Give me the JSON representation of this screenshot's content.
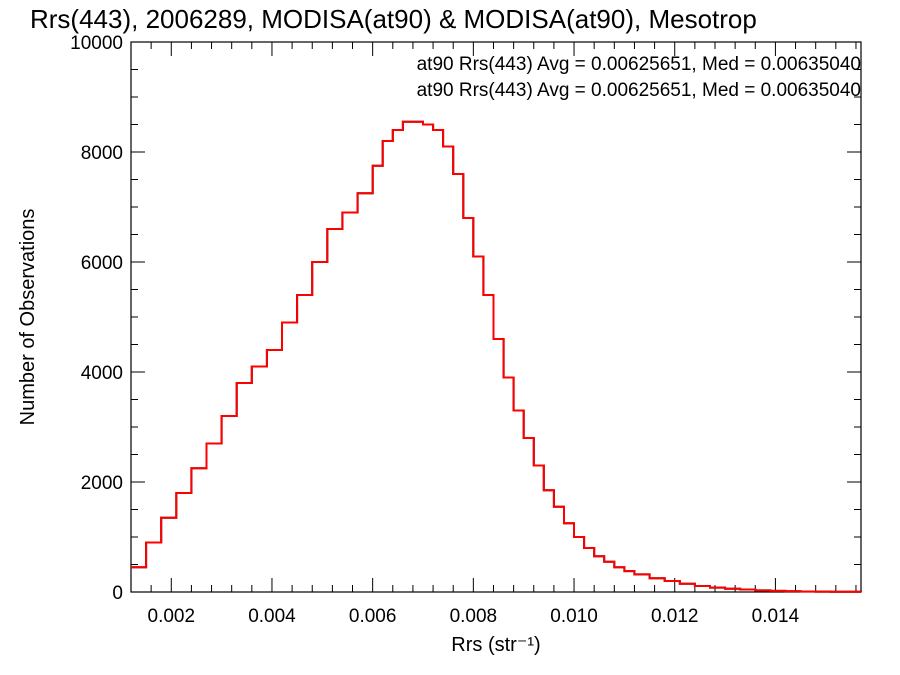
{
  "chart_data": {
    "type": "line",
    "title": "Rrs(443), 2006289, MODISA(at90) & MODISA(at90), Mesotrop",
    "xlabel": "Rrs (str⁻¹)",
    "ylabel": "Number of Observations",
    "xlim": [
      0.0012,
      0.0157
    ],
    "ylim": [
      0,
      10000
    ],
    "xticks": [
      {
        "value": 0.002,
        "label": "0.002"
      },
      {
        "value": 0.004,
        "label": "0.004"
      },
      {
        "value": 0.006,
        "label": "0.006"
      },
      {
        "value": 0.008,
        "label": "0.008"
      },
      {
        "value": 0.01,
        "label": "0.010"
      },
      {
        "value": 0.012,
        "label": "0.012"
      },
      {
        "value": 0.014,
        "label": "0.014"
      }
    ],
    "yticks": [
      {
        "value": 0,
        "label": "0"
      },
      {
        "value": 2000,
        "label": "2000"
      },
      {
        "value": 4000,
        "label": "4000"
      },
      {
        "value": 6000,
        "label": "6000"
      },
      {
        "value": 8000,
        "label": "8000"
      },
      {
        "value": 10000,
        "label": "10000"
      }
    ],
    "annotations": [
      {
        "text": "at90 Rrs(443) Avg = 0.00625651, Med = 0.00635040",
        "color": "#000000"
      },
      {
        "text": "at90 Rrs(443) Avg = 0.00625651, Med = 0.00635040",
        "color": "#ff0000"
      }
    ],
    "series_colors": [
      "#000000",
      "#ff0000"
    ],
    "x": [
      0.0012,
      0.0015,
      0.0018,
      0.0021,
      0.0024,
      0.0027,
      0.003,
      0.0033,
      0.0036,
      0.0039,
      0.0042,
      0.0045,
      0.0048,
      0.0051,
      0.0054,
      0.0057,
      0.006,
      0.0062,
      0.0064,
      0.0066,
      0.0068,
      0.007,
      0.0072,
      0.0074,
      0.0076,
      0.0078,
      0.008,
      0.0082,
      0.0084,
      0.0086,
      0.0088,
      0.009,
      0.0092,
      0.0094,
      0.0096,
      0.0098,
      0.01,
      0.0102,
      0.0104,
      0.0106,
      0.0108,
      0.011,
      0.0112,
      0.0115,
      0.0118,
      0.0121,
      0.0124,
      0.0127,
      0.013,
      0.0133,
      0.0136,
      0.0139,
      0.0142,
      0.0145,
      0.0148,
      0.0151,
      0.0154,
      0.0157
    ],
    "y": [
      450,
      900,
      1350,
      1800,
      2250,
      2700,
      3200,
      3800,
      4100,
      4400,
      4900,
      5400,
      6000,
      6600,
      6900,
      7250,
      7750,
      8200,
      8400,
      8550,
      8550,
      8500,
      8400,
      8100,
      7600,
      6800,
      6100,
      5400,
      4600,
      3900,
      3300,
      2800,
      2300,
      1850,
      1550,
      1250,
      1000,
      800,
      650,
      550,
      450,
      380,
      320,
      250,
      200,
      150,
      110,
      80,
      60,
      45,
      30,
      20,
      15,
      10,
      8,
      5,
      3,
      2
    ]
  }
}
